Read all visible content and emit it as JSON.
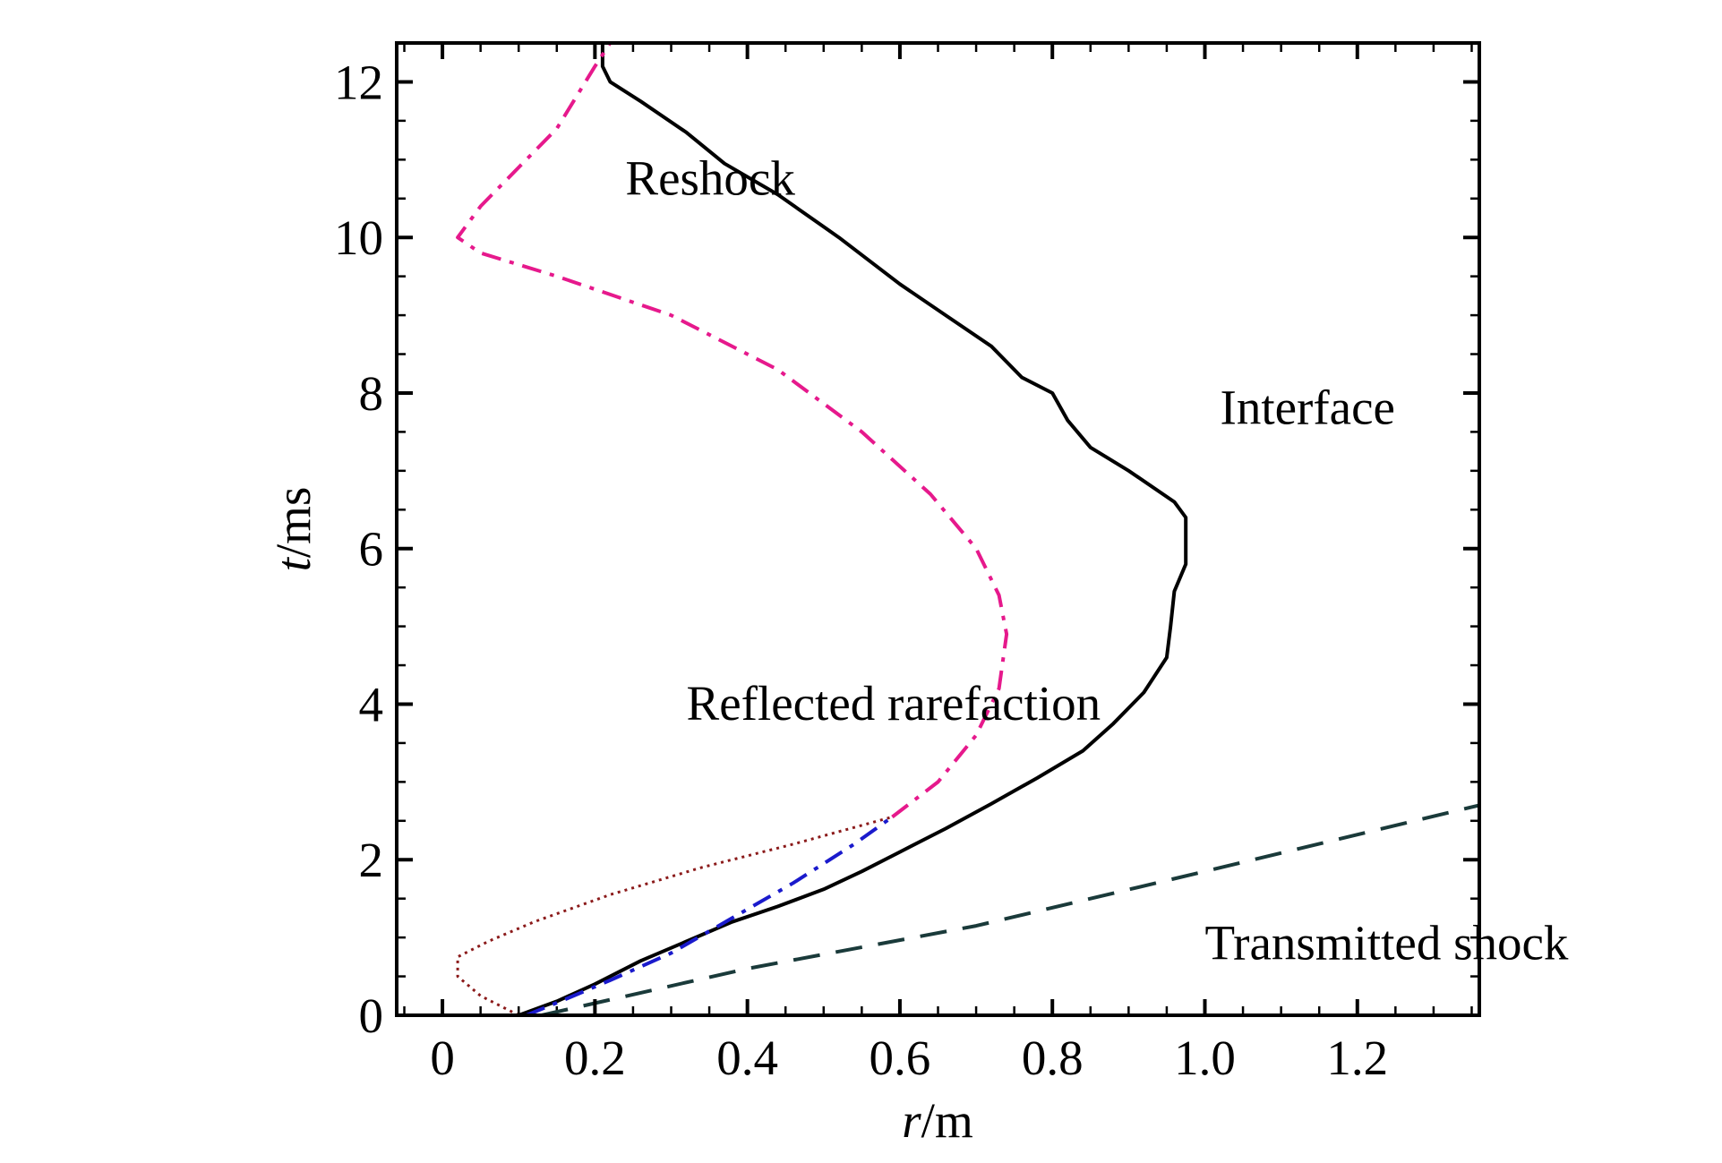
{
  "chart_data": {
    "type": "line",
    "title": "",
    "xlabel": {
      "var": "r",
      "unit": "/m"
    },
    "ylabel": {
      "var": "t",
      "unit": "/ms"
    },
    "xlim": [
      -0.06,
      1.36
    ],
    "ylim": [
      0,
      12.5
    ],
    "xticks": [
      0,
      0.2,
      0.4,
      0.6,
      0.8,
      1.0,
      1.2
    ],
    "xtick_labels": [
      "0",
      "0.2",
      "0.4",
      "0.6",
      "0.8",
      "1.0",
      "1.2"
    ],
    "yticks": [
      0,
      2,
      4,
      6,
      8,
      10,
      12
    ],
    "ytick_labels": [
      "0",
      "2",
      "4",
      "6",
      "8",
      "10",
      "12"
    ],
    "grid": false,
    "legend": "none",
    "series": [
      {
        "name": "Interface",
        "color": "#000000",
        "style": "solid",
        "points": [
          [
            0.1,
            0.0
          ],
          [
            0.15,
            0.18
          ],
          [
            0.2,
            0.4
          ],
          [
            0.26,
            0.7
          ],
          [
            0.32,
            0.95
          ],
          [
            0.38,
            1.2
          ],
          [
            0.44,
            1.4
          ],
          [
            0.5,
            1.62
          ],
          [
            0.55,
            1.85
          ],
          [
            0.6,
            2.1
          ],
          [
            0.66,
            2.4
          ],
          [
            0.72,
            2.72
          ],
          [
            0.78,
            3.05
          ],
          [
            0.84,
            3.4
          ],
          [
            0.88,
            3.75
          ],
          [
            0.92,
            4.15
          ],
          [
            0.95,
            4.6
          ],
          [
            0.955,
            5.0
          ],
          [
            0.96,
            5.45
          ],
          [
            0.975,
            5.8
          ],
          [
            0.975,
            6.4
          ],
          [
            0.96,
            6.6
          ],
          [
            0.9,
            7.0
          ],
          [
            0.85,
            7.3
          ],
          [
            0.82,
            7.65
          ],
          [
            0.8,
            8.0
          ],
          [
            0.76,
            8.2
          ],
          [
            0.72,
            8.6
          ],
          [
            0.66,
            9.0
          ],
          [
            0.6,
            9.4
          ],
          [
            0.52,
            10.0
          ],
          [
            0.44,
            10.55
          ],
          [
            0.37,
            10.95
          ],
          [
            0.32,
            11.35
          ],
          [
            0.26,
            11.75
          ],
          [
            0.22,
            12.0
          ],
          [
            0.21,
            12.2
          ],
          [
            0.21,
            12.5
          ]
        ]
      },
      {
        "name": "Reflected rarefaction",
        "color": "#1a1acc",
        "style": "dashdot",
        "points": [
          [
            0.11,
            0.0
          ],
          [
            0.16,
            0.2
          ],
          [
            0.22,
            0.45
          ],
          [
            0.3,
            0.8
          ],
          [
            0.38,
            1.25
          ],
          [
            0.46,
            1.7
          ],
          [
            0.54,
            2.2
          ],
          [
            0.59,
            2.55
          ]
        ]
      },
      {
        "name": "Reflected rarefaction",
        "color": "#8b1a1a",
        "style": "dotted",
        "points": [
          [
            0.1,
            0.0
          ],
          [
            0.05,
            0.25
          ],
          [
            0.02,
            0.5
          ],
          [
            0.02,
            0.75
          ],
          [
            0.06,
            0.95
          ],
          [
            0.12,
            1.2
          ],
          [
            0.22,
            1.55
          ],
          [
            0.34,
            1.9
          ],
          [
            0.46,
            2.2
          ],
          [
            0.59,
            2.55
          ]
        ]
      },
      {
        "name": "Reshock",
        "color": "#e6198c",
        "style": "dashdot",
        "points": [
          [
            0.59,
            2.55
          ],
          [
            0.65,
            3.0
          ],
          [
            0.7,
            3.6
          ],
          [
            0.73,
            4.2
          ],
          [
            0.74,
            4.9
          ],
          [
            0.73,
            5.4
          ],
          [
            0.7,
            6.0
          ],
          [
            0.64,
            6.7
          ],
          [
            0.55,
            7.5
          ],
          [
            0.44,
            8.3
          ],
          [
            0.3,
            9.0
          ],
          [
            0.15,
            9.5
          ],
          [
            0.05,
            9.8
          ],
          [
            0.02,
            10.0
          ],
          [
            0.05,
            10.4
          ],
          [
            0.1,
            10.9
          ],
          [
            0.15,
            11.4
          ],
          [
            0.2,
            12.2
          ],
          [
            0.22,
            12.5
          ]
        ]
      },
      {
        "name": "Transmitted shock",
        "color": "#1a3a3a",
        "style": "dashed",
        "points": [
          [
            0.13,
            0.0
          ],
          [
            0.4,
            0.6
          ],
          [
            0.7,
            1.15
          ],
          [
            1.0,
            1.85
          ],
          [
            1.36,
            2.7
          ]
        ]
      }
    ],
    "annotations": [
      {
        "text": "Reshock",
        "x": 0.24,
        "y": 10.55
      },
      {
        "text": "Interface",
        "x": 1.02,
        "y": 7.6
      },
      {
        "text": "Reflected rarefaction",
        "x": 0.32,
        "y": 3.8
      },
      {
        "text": "Transmitted shock",
        "x": 1.0,
        "y": 0.72
      }
    ]
  }
}
